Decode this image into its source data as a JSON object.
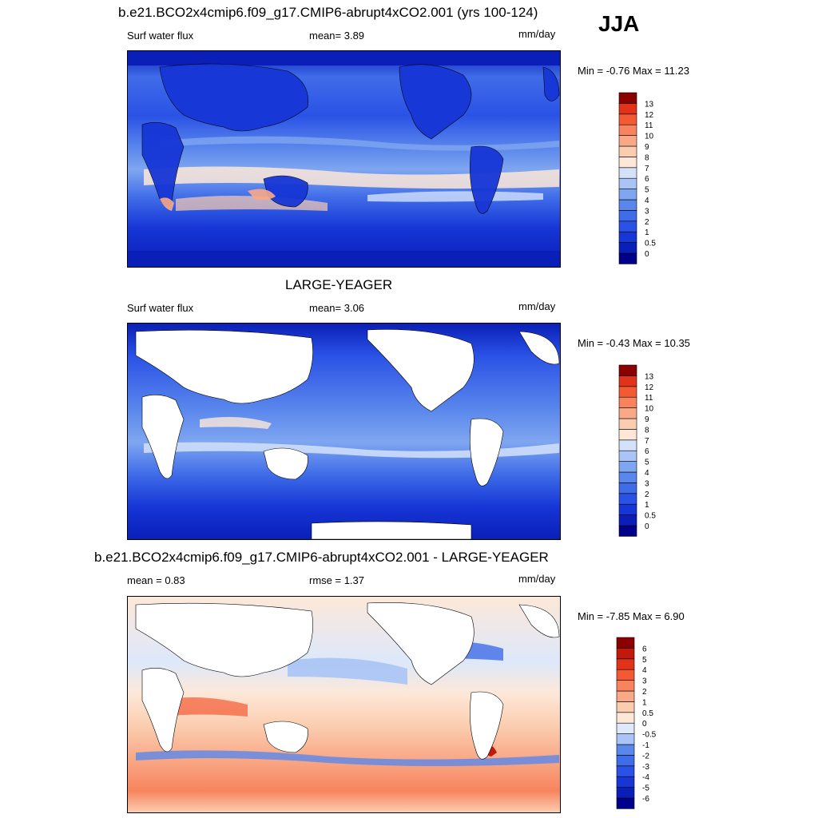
{
  "season": "JJA",
  "panels": [
    {
      "title": "b.e21.BCO2x4cmip6.f09_g17.CMIP6-abrupt4xCO2.001 (yrs 100-124)",
      "left_label": "Surf water flux",
      "center_label": "mean=   3.89",
      "units": "mm/day",
      "minmax": "Min =  -0.76 Max =  11.23",
      "land_filled": true
    },
    {
      "title": "LARGE-YEAGER",
      "left_label": "Surf water flux",
      "center_label": "mean=   3.06",
      "units": "mm/day",
      "minmax": "Min =  -0.43 Max =  10.35",
      "land_filled": false
    },
    {
      "title": "b.e21.BCO2x4cmip6.f09_g17.CMIP6-abrupt4xCO2.001 - LARGE-YEAGER",
      "left_label": "mean =   0.83",
      "center_label": "rmse =   1.37",
      "units": "mm/day",
      "minmax": "Min =  -7.85 Max =   6.90",
      "land_filled": false
    }
  ],
  "colorbars": {
    "absolute": {
      "labels": [
        "0",
        "0.5",
        "1",
        "2",
        "3",
        "4",
        "5",
        "6",
        "7",
        "8",
        "9",
        "10",
        "11",
        "12",
        "13"
      ],
      "colors": [
        "#00008b",
        "#0a1fb8",
        "#1636d6",
        "#2a52e6",
        "#3f6ce8",
        "#5a87ec",
        "#7fa6f0",
        "#a9c4f5",
        "#d3e2fa",
        "#fde8d8",
        "#fbcdb0",
        "#f9a987",
        "#f7845e",
        "#f35a33",
        "#e2331a",
        "#8b0000"
      ]
    },
    "difference": {
      "labels": [
        "-6",
        "-5",
        "-4",
        "-3",
        "-2",
        "-1",
        "-0.5",
        "0",
        "0.5",
        "1",
        "2",
        "3",
        "4",
        "5",
        "6"
      ],
      "colors": [
        "#00008b",
        "#0a1fb8",
        "#1636d6",
        "#2a52e6",
        "#3f6ce8",
        "#5a87ec",
        "#a9c4f5",
        "#dde8fb",
        "#fde8d8",
        "#fbcdb0",
        "#f9a987",
        "#f7845e",
        "#f35a33",
        "#e2331a",
        "#c11a0b",
        "#8b0000"
      ]
    }
  }
}
